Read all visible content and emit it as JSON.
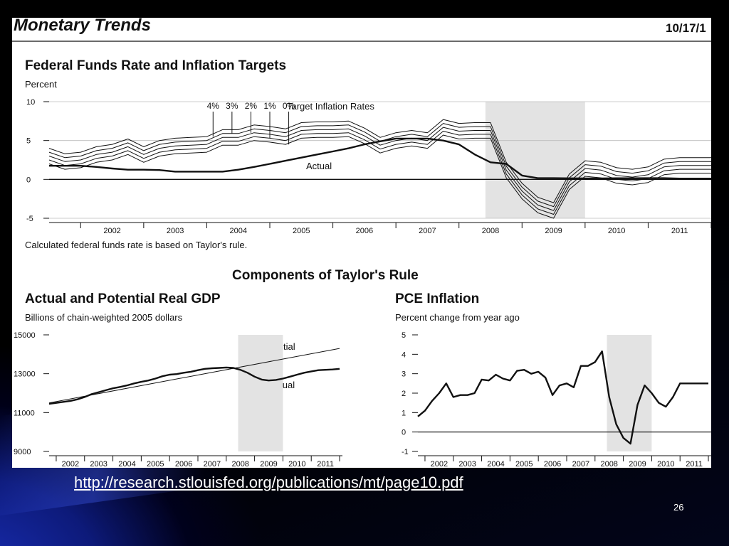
{
  "header": {
    "title": "Monetary Trends",
    "date": "10/17/1"
  },
  "chart_data": [
    {
      "type": "line",
      "title": "Federal Funds Rate and Inflation Targets",
      "ylabel": "Percent",
      "ylim": [
        -5,
        10
      ],
      "yticks": [
        -5,
        0,
        5,
        10
      ],
      "xticks": [
        "2002",
        "2003",
        "2004",
        "2005",
        "2006",
        "2007",
        "2008",
        "2009",
        "2010",
        "2011"
      ],
      "recession": [
        2007.92,
        2009.5
      ],
      "target_label": "Target Inflation Rates",
      "target_rates": [
        "4%",
        "3%",
        "2%",
        "1%",
        "0%"
      ],
      "actual_label": "Actual",
      "note": "Calculated federal funds rate is based on Taylor's rule.",
      "x": [
        2001.0,
        2001.25,
        2001.5,
        2001.75,
        2002.0,
        2002.25,
        2002.5,
        2002.75,
        2003.0,
        2003.25,
        2003.5,
        2003.75,
        2004.0,
        2004.25,
        2004.5,
        2004.75,
        2005.0,
        2005.25,
        2005.5,
        2005.75,
        2006.0,
        2006.25,
        2006.5,
        2006.75,
        2007.0,
        2007.25,
        2007.5,
        2007.75,
        2008.0,
        2008.25,
        2008.5,
        2008.75,
        2009.0,
        2009.25,
        2009.5,
        2009.75,
        2010.0,
        2010.25,
        2010.5,
        2010.75,
        2011.0,
        2011.25,
        2011.5
      ],
      "series": [
        {
          "name": "4%",
          "values": [
            4.0,
            3.3,
            3.5,
            4.2,
            4.5,
            5.2,
            4.2,
            5.0,
            5.3,
            5.4,
            5.5,
            6.4,
            6.4,
            7.0,
            6.8,
            6.5,
            7.3,
            7.4,
            7.4,
            7.5,
            6.6,
            5.4,
            6.0,
            6.3,
            6.0,
            7.7,
            7.2,
            7.3,
            7.3,
            2.2,
            -0.5,
            -2.3,
            -3.0,
            0.7,
            2.4,
            2.2,
            1.5,
            1.3,
            1.6,
            2.6,
            2.8,
            2.8,
            2.8
          ]
        },
        {
          "name": "3%",
          "values": [
            3.5,
            2.8,
            3.0,
            3.7,
            4.0,
            4.7,
            3.7,
            4.5,
            4.8,
            4.9,
            5.0,
            5.9,
            5.9,
            6.5,
            6.3,
            6.0,
            6.8,
            6.9,
            6.9,
            7.0,
            6.1,
            4.9,
            5.5,
            5.8,
            5.5,
            7.2,
            6.7,
            6.8,
            6.8,
            1.7,
            -1.0,
            -2.8,
            -3.5,
            0.2,
            1.9,
            1.7,
            1.0,
            0.8,
            1.1,
            2.1,
            2.3,
            2.3,
            2.3
          ]
        },
        {
          "name": "2%",
          "values": [
            3.0,
            2.3,
            2.5,
            3.2,
            3.5,
            4.2,
            3.2,
            4.0,
            4.3,
            4.4,
            4.5,
            5.4,
            5.4,
            6.0,
            5.8,
            5.5,
            6.3,
            6.4,
            6.4,
            6.5,
            5.6,
            4.4,
            5.0,
            5.3,
            5.0,
            6.7,
            6.2,
            6.3,
            6.3,
            1.2,
            -1.5,
            -3.3,
            -4.0,
            -0.3,
            1.4,
            1.2,
            0.5,
            0.3,
            0.6,
            1.6,
            1.8,
            1.8,
            1.8
          ]
        },
        {
          "name": "1%",
          "values": [
            2.5,
            1.8,
            2.0,
            2.7,
            3.0,
            3.7,
            2.7,
            3.5,
            3.8,
            3.9,
            4.0,
            4.9,
            4.9,
            5.5,
            5.3,
            5.0,
            5.8,
            5.9,
            5.9,
            6.0,
            5.1,
            3.9,
            4.5,
            4.8,
            4.5,
            6.2,
            5.7,
            5.8,
            5.8,
            0.7,
            -2.0,
            -3.8,
            -4.5,
            -0.8,
            0.9,
            0.7,
            0.0,
            -0.2,
            0.1,
            1.1,
            1.3,
            1.3,
            1.3
          ]
        },
        {
          "name": "0%",
          "values": [
            2.0,
            1.3,
            1.5,
            2.2,
            2.5,
            3.2,
            2.2,
            3.0,
            3.3,
            3.4,
            3.5,
            4.4,
            4.4,
            5.0,
            4.8,
            4.5,
            5.3,
            5.4,
            5.4,
            5.5,
            4.6,
            3.4,
            4.0,
            4.3,
            4.0,
            5.7,
            5.2,
            5.3,
            5.3,
            0.2,
            -2.5,
            -4.3,
            -5.0,
            -1.3,
            0.4,
            0.2,
            -0.5,
            -0.7,
            -0.4,
            0.6,
            0.8,
            0.8,
            0.8
          ]
        },
        {
          "name": "Actual",
          "values": [
            1.75,
            1.75,
            1.75,
            1.6,
            1.4,
            1.25,
            1.25,
            1.2,
            1.0,
            1.0,
            1.0,
            1.0,
            1.25,
            1.6,
            2.0,
            2.4,
            2.8,
            3.2,
            3.6,
            4.0,
            4.5,
            4.9,
            5.25,
            5.25,
            5.25,
            5.0,
            4.5,
            3.2,
            2.2,
            2.0,
            0.5,
            0.16,
            0.16,
            0.14,
            0.12,
            0.12,
            0.15,
            0.15,
            0.16,
            0.16,
            0.1,
            0.1,
            0.1
          ]
        }
      ]
    },
    {
      "type": "line",
      "group_title": "Components of Taylor's Rule",
      "title": "Actual and Potential Real GDP",
      "ylabel": "Billions of chain-weighted 2005 dollars",
      "ylim": [
        9000,
        15000
      ],
      "yticks": [
        9000,
        11000,
        13000,
        15000
      ],
      "xticks": [
        "2002",
        "2003",
        "2004",
        "2005",
        "2006",
        "2007",
        "2008",
        "2009",
        "2010",
        "2011"
      ],
      "recession": [
        2007.92,
        2009.5
      ],
      "series": [
        {
          "name": "Potential",
          "x": [
            2001.25,
            2011.5
          ],
          "values": [
            11500,
            14300
          ]
        },
        {
          "name": "Actual",
          "x": [
            2001.25,
            2001.5,
            2001.75,
            2002.0,
            2002.25,
            2002.5,
            2002.75,
            2003.0,
            2003.25,
            2003.5,
            2003.75,
            2004.0,
            2004.25,
            2004.5,
            2004.75,
            2005.0,
            2005.25,
            2005.5,
            2005.75,
            2006.0,
            2006.25,
            2006.5,
            2006.75,
            2007.0,
            2007.25,
            2007.5,
            2007.75,
            2008.0,
            2008.25,
            2008.5,
            2008.75,
            2009.0,
            2009.25,
            2009.5,
            2009.75,
            2010.0,
            2010.25,
            2010.5,
            2010.75,
            2011.0,
            2011.25,
            2011.5
          ],
          "values": [
            11450,
            11500,
            11550,
            11600,
            11680,
            11800,
            11950,
            12050,
            12150,
            12250,
            12320,
            12400,
            12500,
            12580,
            12650,
            12750,
            12870,
            12950,
            12980,
            13050,
            13100,
            13180,
            13250,
            13280,
            13300,
            13320,
            13300,
            13200,
            13050,
            12850,
            12700,
            12650,
            12680,
            12750,
            12850,
            12950,
            13050,
            13120,
            13180,
            13200,
            13220,
            13250
          ]
        }
      ]
    },
    {
      "type": "line",
      "title": "PCE Inflation",
      "ylabel": "Percent change from year ago",
      "ylim": [
        -1,
        5
      ],
      "yticks": [
        -1,
        0,
        1,
        2,
        3,
        4,
        5
      ],
      "xticks": [
        "2002",
        "2003",
        "2004",
        "2005",
        "2006",
        "2007",
        "2008",
        "2009",
        "2010",
        "2011"
      ],
      "recession": [
        2007.92,
        2009.5
      ],
      "series": [
        {
          "name": "PCE",
          "x": [
            2001.25,
            2001.5,
            2001.75,
            2002.0,
            2002.25,
            2002.5,
            2002.75,
            2003.0,
            2003.25,
            2003.5,
            2003.75,
            2004.0,
            2004.25,
            2004.5,
            2004.75,
            2005.0,
            2005.25,
            2005.5,
            2005.75,
            2006.0,
            2006.25,
            2006.5,
            2006.75,
            2007.0,
            2007.25,
            2007.5,
            2007.75,
            2008.0,
            2008.25,
            2008.5,
            2008.75,
            2009.0,
            2009.25,
            2009.5,
            2009.75,
            2010.0,
            2010.25,
            2010.5,
            2010.75,
            2011.0,
            2011.25,
            2011.5
          ],
          "values": [
            0.8,
            1.1,
            1.6,
            2.0,
            2.5,
            1.8,
            1.9,
            1.9,
            2.0,
            2.7,
            2.65,
            2.95,
            2.75,
            2.65,
            3.15,
            3.2,
            3.0,
            3.1,
            2.8,
            1.9,
            2.4,
            2.5,
            2.3,
            3.4,
            3.4,
            3.6,
            4.15,
            1.8,
            0.4,
            -0.3,
            -0.6,
            1.4,
            2.4,
            2.0,
            1.5,
            1.3,
            1.8,
            2.5,
            2.5,
            2.5,
            2.5,
            2.5
          ]
        }
      ]
    }
  ],
  "footer": {
    "url": "http://research.stlouisfed.org/publications/mt/page10.pdf",
    "page": "26"
  },
  "colors": {
    "recession_shade": "#e3e3e3",
    "line": "#111111",
    "background": "#000000",
    "accent_blue": "#1a2fb8"
  }
}
